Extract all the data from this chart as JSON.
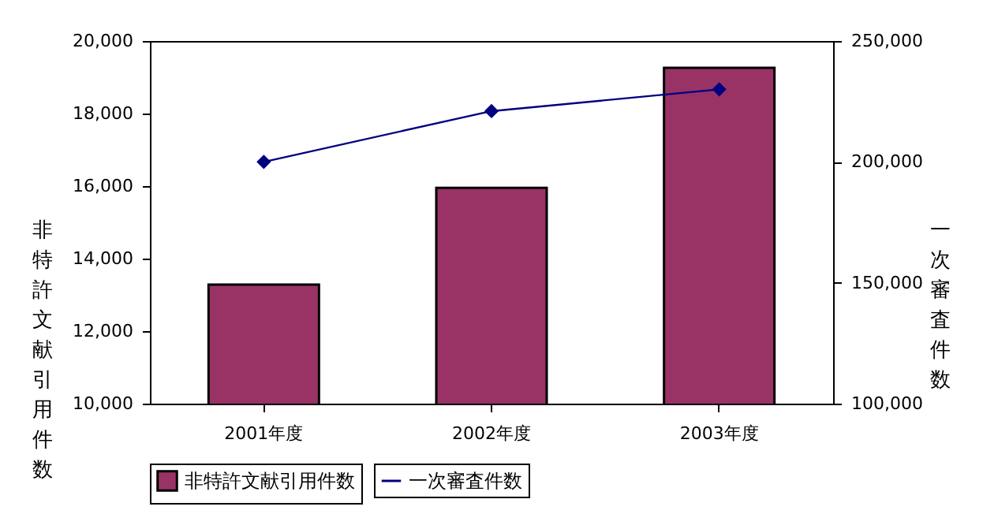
{
  "chart_data": {
    "type": "bar",
    "categories": [
      "2001年度",
      "2002年度",
      "2003年度"
    ],
    "ylabel": "非特許文献引用件数",
    "y2label": "一次審査件数",
    "series": [
      {
        "name": "非特許文献引用件数",
        "color": "#993366",
        "values": [
          13280,
          15950,
          19260
        ]
      },
      {
        "name": "一次審査件数",
        "type": "line",
        "axis": "y2",
        "color": "#000080",
        "values": [
          200000,
          221000,
          230000
        ]
      }
    ],
    "ylim": [
      10000,
      20000
    ],
    "yticks": [
      {
        "value": 10000,
        "label": "10,000"
      },
      {
        "value": 12000,
        "label": "12,000"
      },
      {
        "value": 14000,
        "label": "14,000"
      },
      {
        "value": 16000,
        "label": "16,000"
      },
      {
        "value": 18000,
        "label": "18,000"
      },
      {
        "value": 20000,
        "label": "20,000"
      }
    ],
    "y2lim": [
      100000,
      250000
    ],
    "y2ticks": [
      {
        "value": 100000,
        "label": "100,000"
      },
      {
        "value": 150000,
        "label": "150,000"
      },
      {
        "value": 200000,
        "label": "200,000"
      },
      {
        "value": 250000,
        "label": "250,000"
      }
    ],
    "grid": false,
    "legend": "bottom",
    "marker": "diamond",
    "line_style": "solid"
  }
}
